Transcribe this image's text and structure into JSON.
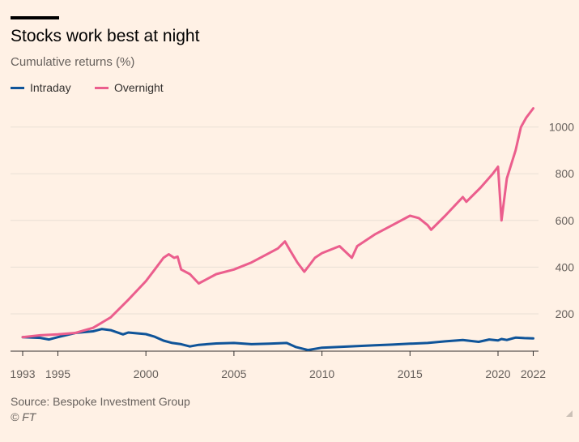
{
  "header": {
    "title": "Stocks work best at night",
    "subtitle": "Cumulative returns (%)"
  },
  "footer": {
    "source": "Source: Bespoke Investment Group",
    "copyright": "© FT"
  },
  "colors": {
    "intraday": "#0f5499",
    "overnight": "#eb5e8d",
    "background": "#fff1e5",
    "grid": "#e9dfd5"
  },
  "icons": [
    "resize-icon"
  ],
  "chart_data": {
    "type": "line",
    "title": "Stocks work best at night",
    "subtitle": "Cumulative returns (%)",
    "xlabel": "",
    "ylabel": "",
    "xlim": [
      1993,
      2022.3
    ],
    "ylim": [
      40,
      1110
    ],
    "y_ticks": [
      200,
      400,
      600,
      800,
      1000
    ],
    "x_ticks": [
      {
        "value": 1993,
        "label": "1993"
      },
      {
        "value": 1995,
        "label": "1995"
      },
      {
        "value": 2000,
        "label": "2000"
      },
      {
        "value": 2005,
        "label": "2005"
      },
      {
        "value": 2010,
        "label": "2010"
      },
      {
        "value": 2015,
        "label": "2015"
      },
      {
        "value": 2020,
        "label": "2020"
      },
      {
        "value": 2022,
        "label": "2022"
      }
    ],
    "y_axis_position": "right",
    "grid": "horizontal",
    "legend": "top-left",
    "series": [
      {
        "name": "Intraday",
        "x": [
          1993,
          1994,
          1994.5,
          1995,
          1996,
          1997,
          1997.5,
          1998,
          1998.7,
          1999,
          2000,
          2000.5,
          2001,
          2001.5,
          2002,
          2002.5,
          2003,
          2004,
          2005,
          2006,
          2007,
          2008,
          2008.5,
          2009.2,
          2010,
          2011,
          2012,
          2013,
          2014,
          2015,
          2016,
          2017,
          2018,
          2018.9,
          2019.5,
          2020,
          2020.2,
          2020.5,
          2021,
          2021.5,
          2022
        ],
        "y": [
          100,
          97,
          90,
          100,
          118,
          125,
          135,
          130,
          112,
          120,
          113,
          102,
          85,
          75,
          70,
          60,
          67,
          73,
          75,
          70,
          72,
          75,
          58,
          45,
          55,
          58,
          62,
          65,
          68,
          72,
          75,
          82,
          88,
          80,
          90,
          86,
          92,
          88,
          98,
          96,
          95
        ]
      },
      {
        "name": "Overnight",
        "x": [
          1993,
          1994,
          1995,
          1996,
          1997,
          1998,
          1999,
          2000,
          2000.5,
          2001,
          2001.3,
          2001.6,
          2001.8,
          2002,
          2002.5,
          2003,
          2004,
          2005,
          2006,
          2007,
          2007.5,
          2007.9,
          2008.2,
          2008.6,
          2009.0,
          2009.3,
          2009.6,
          2010,
          2011,
          2011.7,
          2012,
          2013,
          2014,
          2015,
          2015.5,
          2016,
          2016.2,
          2017,
          2018,
          2018.2,
          2019,
          2019.7,
          2020.0,
          2020.2,
          2020.5,
          2021,
          2021.3,
          2021.6,
          2022
        ],
        "y": [
          100,
          108,
          112,
          118,
          140,
          185,
          260,
          340,
          390,
          440,
          455,
          440,
          445,
          390,
          370,
          330,
          370,
          390,
          420,
          460,
          480,
          510,
          470,
          420,
          380,
          410,
          440,
          460,
          490,
          440,
          490,
          540,
          580,
          620,
          610,
          580,
          560,
          620,
          700,
          680,
          740,
          800,
          830,
          600,
          780,
          900,
          1000,
          1040,
          1080
        ]
      }
    ]
  }
}
